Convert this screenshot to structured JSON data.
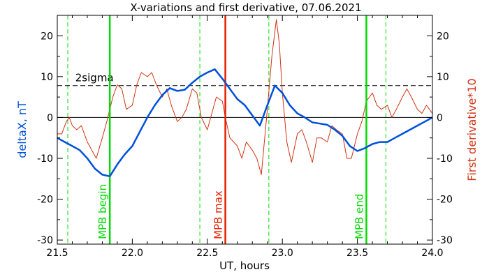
{
  "chart_data": {
    "type": "line",
    "title": "X-variations and first derivative, 07.06.2021",
    "xlabel": "UT, hours",
    "ylabel_left": "deltaX, nT",
    "ylabel_right": "First derivative*10",
    "xlim": [
      21.5,
      24.0
    ],
    "ylim": [
      -31,
      25
    ],
    "x_ticks": [
      "21.5",
      "22.0",
      "22.5",
      "23.0",
      "23.5",
      "24.0"
    ],
    "y_ticks": [
      "20",
      "10",
      "0",
      "-10",
      "-20",
      "-30"
    ],
    "colors": {
      "deltaX": "#0050dc",
      "derivative": "#d23214",
      "mpb": "#00dc00",
      "max": "#e61e00",
      "guide": "#000000"
    },
    "series": [
      {
        "key": "deltaX",
        "x": [
          21.5,
          21.55,
          21.6,
          21.65,
          21.7,
          21.75,
          21.8,
          21.85,
          21.9,
          21.95,
          22.0,
          22.05,
          22.1,
          22.15,
          22.2,
          22.25,
          22.3,
          22.35,
          22.4,
          22.45,
          22.5,
          22.55,
          22.6,
          22.65,
          22.7,
          22.75,
          22.8,
          22.85,
          22.9,
          22.95,
          23.0,
          23.05,
          23.1,
          23.15,
          23.2,
          23.25,
          23.3,
          23.35,
          23.4,
          23.45,
          23.5,
          23.55,
          23.6,
          23.65,
          23.7,
          23.75,
          23.8,
          23.85,
          23.9,
          23.95,
          24.0
        ],
        "values": [
          -5,
          -6,
          -7,
          -8,
          -10,
          -12.5,
          -14,
          -14.4,
          -11.5,
          -9,
          -7,
          -3.5,
          0,
          3,
          5.5,
          7.2,
          6.5,
          6.8,
          8.5,
          10,
          11,
          11.8,
          9.5,
          7,
          4.5,
          3,
          0.5,
          -2,
          3,
          7.8,
          6,
          3,
          1,
          0,
          -1.2,
          -1.5,
          -1.8,
          -3,
          -4.5,
          -7,
          -8.2,
          -7.5,
          -6.5,
          -6,
          -6,
          -5,
          -4,
          -3,
          -2,
          -1,
          0
        ]
      },
      {
        "key": "derivative",
        "x": [
          21.5,
          21.53,
          21.56,
          21.58,
          21.6,
          21.63,
          21.66,
          21.7,
          21.73,
          21.76,
          21.8,
          21.83,
          21.85,
          21.87,
          21.9,
          21.93,
          21.96,
          22.0,
          22.03,
          22.06,
          22.1,
          22.13,
          22.16,
          22.2,
          22.23,
          22.26,
          22.3,
          22.33,
          22.36,
          22.4,
          22.43,
          22.46,
          22.5,
          22.53,
          22.56,
          22.6,
          22.62,
          22.65,
          22.7,
          22.73,
          22.76,
          22.8,
          22.83,
          22.86,
          22.9,
          22.93,
          22.96,
          22.98,
          23.0,
          23.03,
          23.06,
          23.1,
          23.13,
          23.16,
          23.2,
          23.23,
          23.26,
          23.3,
          23.33,
          23.36,
          23.4,
          23.43,
          23.46,
          23.5,
          23.53,
          23.56,
          23.6,
          23.63,
          23.66,
          23.7,
          23.73,
          23.76,
          23.8,
          23.83,
          23.86,
          23.9,
          23.93,
          23.96,
          24.0
        ],
        "values": [
          -4,
          -4,
          -1,
          0,
          -2,
          -3,
          -2,
          -6,
          -8,
          -10,
          -5,
          -1,
          2,
          5,
          8,
          7,
          2,
          3,
          8,
          11,
          10,
          11,
          8,
          5,
          7,
          3,
          -1,
          0,
          2,
          7,
          6,
          0,
          -3,
          1,
          5,
          4,
          0,
          -5,
          -7,
          -10,
          -6,
          -8,
          -10,
          -14,
          2,
          15,
          24,
          18,
          6,
          -6,
          -11,
          -4,
          -3,
          -6,
          -11,
          -5,
          -5,
          -6,
          -2,
          -3,
          -4,
          -10,
          -10,
          -4,
          -1,
          4,
          6,
          3,
          2,
          3,
          0,
          2,
          5,
          7,
          5,
          2,
          1,
          3,
          1
        ]
      }
    ],
    "mpb_lines": [
      {
        "x": 21.85,
        "label": "MPB begin"
      },
      {
        "x": 23.56,
        "label": "MPB end"
      }
    ],
    "max_line": {
      "x": 22.62,
      "label": "MPB max"
    },
    "dashed_green_x": [
      21.57,
      22.45,
      22.91,
      23.69
    ],
    "zero_level": 0,
    "sigma_level": 7.8,
    "sigma_label": "2sigma"
  }
}
